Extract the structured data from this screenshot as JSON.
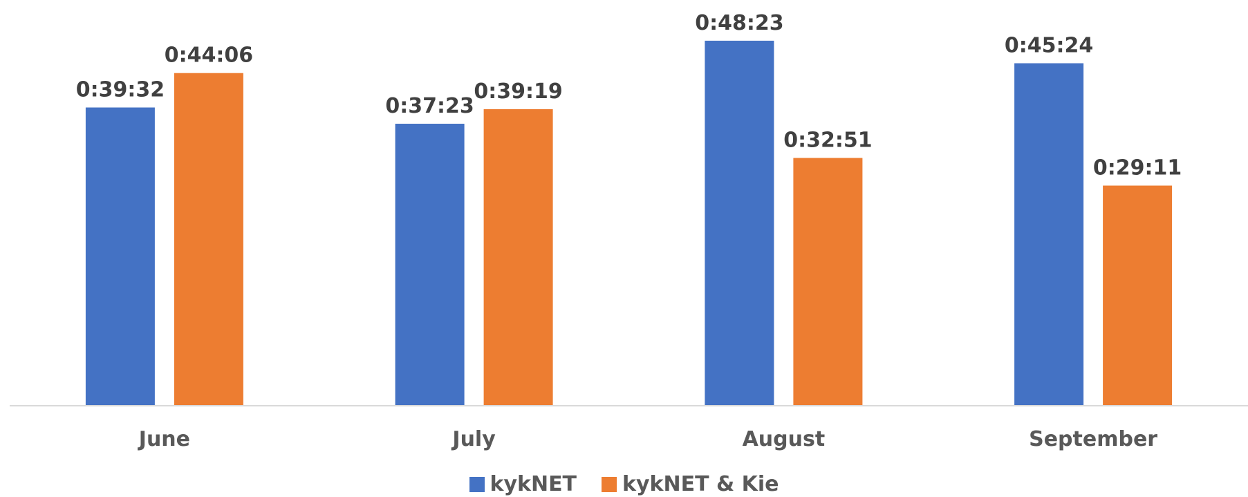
{
  "chart_data": {
    "type": "bar",
    "categories": [
      "June",
      "July",
      "August",
      "September"
    ],
    "series": [
      {
        "name": "kykNET",
        "color": "#4472C4",
        "values": [
          "0:39:32",
          "0:37:23",
          "0:48:23",
          "0:45:24"
        ],
        "seconds": [
          2372,
          2243,
          2903,
          2724
        ]
      },
      {
        "name": "kykNET & Kie",
        "color": "#ED7D31",
        "values": [
          "0:44:06",
          "0:39:19",
          "0:32:51",
          "0:29:11"
        ],
        "seconds": [
          2646,
          2359,
          1971,
          1751
        ]
      }
    ],
    "ylim": [
      0,
      3000
    ],
    "grid": false,
    "legend": "bottom-center",
    "data_labels": true
  }
}
